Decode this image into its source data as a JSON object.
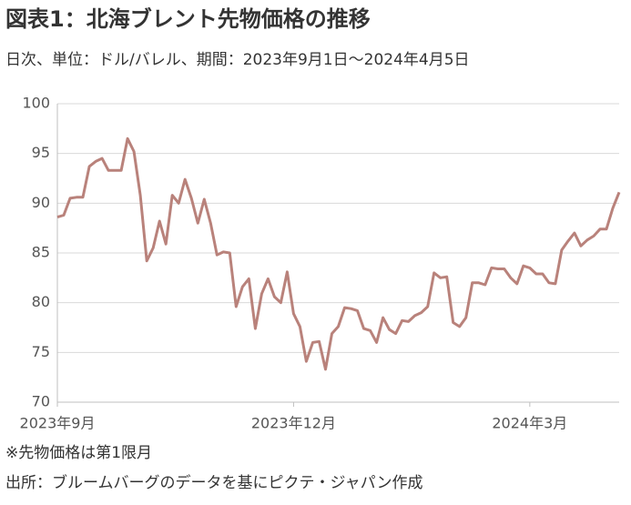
{
  "chart_data": {
    "type": "line",
    "title": "図表1：北海ブレント先物価格の推移",
    "subtitle": "日次、単位：ドル/バレル、期間：2023年9月1日～2024年4月5日",
    "notes": [
      "※先物価格は第1限月",
      "出所：ブルームバーグのデータを基にピクテ・ジャパン作成"
    ],
    "categories": [
      "2023年9月",
      null,
      null,
      null,
      null,
      null,
      null,
      null,
      null,
      null,
      null,
      null,
      null,
      null,
      null,
      null,
      null,
      null,
      null,
      null,
      null,
      null,
      null,
      null,
      null,
      null,
      null,
      null,
      null,
      null,
      null,
      null,
      null,
      null,
      null,
      null,
      null,
      "2023年12月",
      null,
      null,
      null,
      null,
      null,
      null,
      null,
      null,
      null,
      null,
      null,
      null,
      null,
      null,
      null,
      null,
      null,
      null,
      null,
      null,
      null,
      null,
      null,
      null,
      null,
      null,
      null,
      null,
      null,
      null,
      null,
      null,
      null,
      null,
      null,
      null,
      "2024年3月",
      null,
      null,
      null,
      null,
      null,
      null,
      null,
      null,
      null,
      null,
      null,
      null,
      null,
      null
    ],
    "series": [
      {
        "color": "#b9827b",
        "values": [
          88.6,
          88.8,
          90.5,
          90.6,
          90.6,
          93.7,
          94.2,
          94.5,
          93.3,
          93.3,
          93.3,
          96.5,
          95.2,
          90.8,
          84.2,
          85.5,
          88.2,
          85.9,
          90.8,
          90.0,
          92.4,
          90.5,
          88.0,
          90.4,
          88.0,
          84.8,
          85.1,
          85.0,
          79.6,
          81.6,
          82.4,
          77.4,
          80.9,
          82.4,
          80.6,
          80.0,
          83.1,
          78.9,
          77.6,
          74.1,
          76.0,
          76.1,
          73.3,
          76.9,
          77.6,
          79.5,
          79.4,
          79.2,
          77.4,
          77.2,
          76.0,
          78.5,
          77.3,
          76.9,
          78.2,
          78.1,
          78.7,
          79.0,
          79.6,
          83.0,
          82.5,
          82.6,
          78.0,
          77.6,
          78.5,
          82.0,
          82.0,
          81.8,
          83.5,
          83.4,
          83.4,
          82.5,
          81.9,
          83.7,
          83.5,
          82.9,
          82.9,
          82.0,
          81.9,
          85.3,
          86.2,
          87.0,
          85.7,
          86.3,
          86.7,
          87.4,
          87.4,
          89.5,
          91.1
        ]
      }
    ],
    "ylim": [
      70,
      100
    ],
    "yticks": [
      70,
      75,
      80,
      85,
      90,
      95,
      100
    ],
    "grid": true
  }
}
